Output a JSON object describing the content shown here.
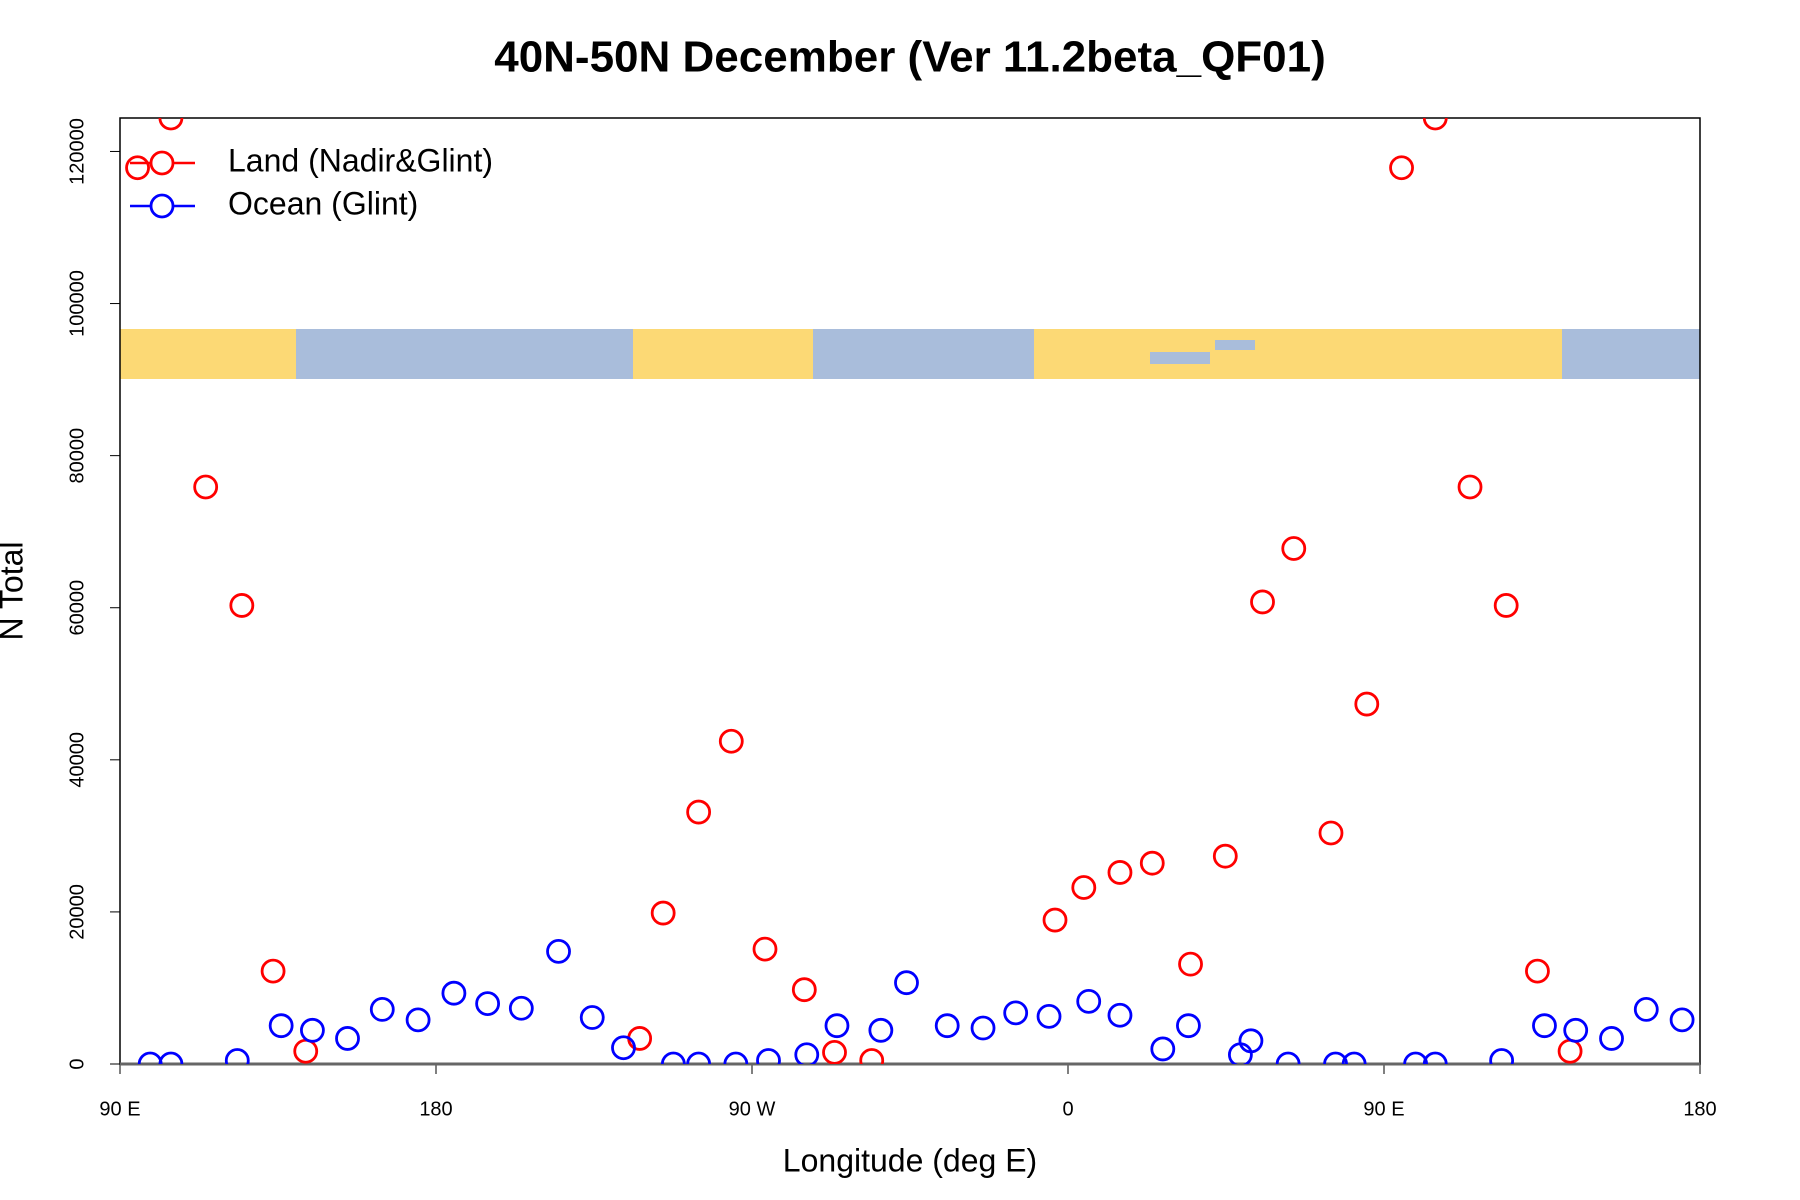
{
  "chart_data": {
    "type": "scatter",
    "title": "40N-50N December (Ver 11.2beta_QF01)",
    "x_label": "Longitude (deg E)",
    "y_label": "N Total",
    "xlim": [
      90,
      540
    ],
    "ylim": [
      0,
      124400
    ],
    "xticks": [
      {
        "value": 90,
        "label": "90 E"
      },
      {
        "value": 180,
        "label": "180"
      },
      {
        "value": 270,
        "label": "90 W"
      },
      {
        "value": 360,
        "label": "0"
      },
      {
        "value": 450,
        "label": "90 E"
      },
      {
        "value": 540,
        "label": "180"
      }
    ],
    "yticks": [
      0,
      20000,
      40000,
      60000,
      80000,
      100000,
      120000
    ],
    "legend": "top-left",
    "series": [
      {
        "name": "Land (Nadir&Glint)",
        "color": "#ff0000",
        "x": [
          95.0,
          104.5,
          114.4,
          124.7,
          133.6,
          142.9,
          238.0,
          244.7,
          254.8,
          264.1,
          273.7,
          284.9,
          293.5,
          304.1,
          356.3,
          364.5,
          374.8,
          384.0,
          394.9,
          404.8,
          415.4,
          424.3,
          434.9,
          445.1,
          455.0,
          464.6,
          474.5,
          484.8,
          493.7,
          503.0
        ],
        "values": [
          117860,
          124400,
          75880,
          60300,
          12210,
          1680,
          3360,
          19850,
          33130,
          42440,
          15110,
          9770,
          1530,
          460,
          18930,
          23210,
          25190,
          26410,
          13130,
          27330,
          60760,
          67790,
          30380,
          47330,
          117860,
          124400,
          75880,
          60300,
          12210,
          1680
        ]
      },
      {
        "name": "Ocean (Glint)",
        "color": "#0000ff",
        "x": [
          98.6,
          104.5,
          123.4,
          135.9,
          144.8,
          154.8,
          164.7,
          174.9,
          185.1,
          194.7,
          204.3,
          214.9,
          224.5,
          233.4,
          247.6,
          254.8,
          265.4,
          274.7,
          285.6,
          294.2,
          306.7,
          314.0,
          325.6,
          335.8,
          345.1,
          354.6,
          365.9,
          374.8,
          387.0,
          394.3,
          409.1,
          412.1,
          422.7,
          436.2,
          441.5,
          459.0,
          464.6,
          483.5,
          495.7,
          504.6,
          514.8,
          524.7,
          534.9
        ],
        "values": [
          0,
          0,
          460,
          5040,
          4430,
          3360,
          7180,
          5800,
          9310,
          7940,
          7330,
          14810,
          6110,
          2140,
          0,
          0,
          0,
          460,
          1220,
          5040,
          4430,
          10690,
          5040,
          4730,
          6720,
          6260,
          8240,
          6410,
          1980,
          5040,
          1220,
          3050,
          0,
          0,
          0,
          0,
          0,
          460,
          5040,
          4430,
          3360,
          7180,
          5800
        ]
      }
    ]
  }
}
